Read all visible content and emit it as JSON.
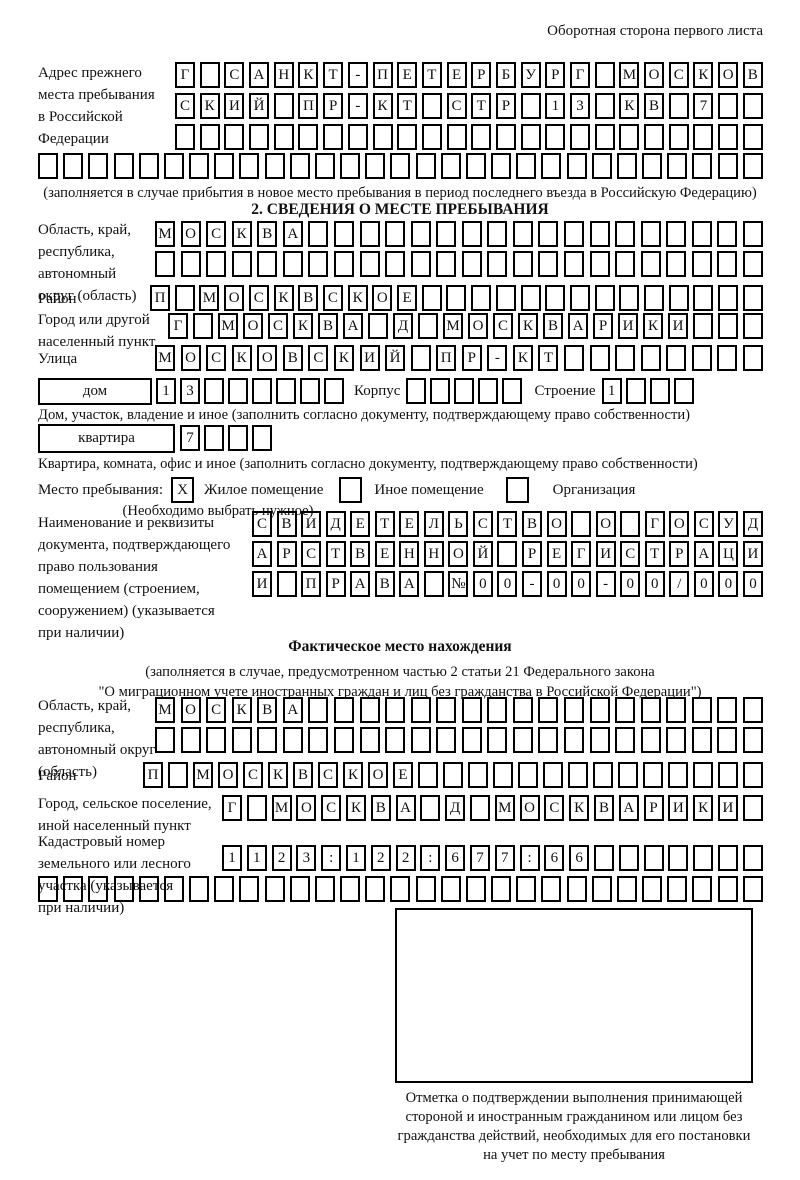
{
  "ink": "#000000",
  "page": {
    "back_note": "Оборотная сторона первого листа"
  },
  "prev": {
    "label": [
      "Адрес прежнего",
      "места пребывания",
      "в Российской",
      "Федерации"
    ],
    "row1": "Г САНКТ-ПЕТЕРБУРГ МОСКОВ",
    "row2": "СКИЙ ПР-КТ СТР 13 КВ 7",
    "row3": "",
    "row4": "",
    "caption": "(заполняется в случае прибытия в новое место пребывания в период последнего въезда в Российскую Федерацию)"
  },
  "s2": {
    "title": "2. СВЕДЕНИЯ О МЕСТЕ ПРЕБЫВАНИЯ",
    "region_label": [
      "Область, край,",
      "республика,",
      "автономный",
      "округ (область)"
    ],
    "region_row1": "МОСКВА",
    "region_row2": "",
    "district_label": "Район",
    "district_row": "П МОСКВСКОЕ",
    "city_label": [
      "Город или другой",
      "населенный пункт"
    ],
    "city_row": "Г МОСКВА Д МОСКВАРИКИ",
    "street_label": "Улица",
    "street_row": "МОСКОВСКИЙ ПР-КТ",
    "house_label": "дом",
    "house_row": "13",
    "korpus_label": "Корпус",
    "korpus_row": "",
    "stroenie_label": "Строение",
    "stroenie_row": "1",
    "house_caption": "Дом, участок, владение и иное (заполнить согласно документу, подтверждающему право собственности)",
    "apt_label": "квартира",
    "apt_row": "7",
    "apt_caption": "Квартира, комната, офис и иное (заполнить согласно документу, подтверждающему право собственности)",
    "stay_label": "Место пребывания:",
    "stay_mark": "X",
    "opt_residential": "Жилое помещение",
    "opt_other": "Иное помещение",
    "opt_org": "Организация",
    "choose_caption": "(Необходимо выбрать нужное)",
    "doc_label": [
      "Наименование и реквизиты",
      "документа, подтверждающего",
      "право пользования",
      "помещением (строением,",
      "сооружением) (указывается",
      "при наличии)"
    ],
    "doc_row1": "СВИДЕТЕЛЬСТВО О ГОСУД",
    "doc_row2": "АРСТВЕННОЙ РЕГИСТРАЦИ",
    "doc_row3": "И ПРАВА №00-00-00/000"
  },
  "s3": {
    "title": "Фактическое место нахождения",
    "caption1": "(заполняется в случае, предусмотренном частью 2 статьи 21 Федерального закона",
    "caption2": "\"О миграционном учете иностранных граждан и лиц без гражданства в Российской Федерации\")",
    "region_label": [
      "Область, край,",
      "республика,",
      "автономный округ",
      "(область)"
    ],
    "region_row1": "МОСКВА",
    "region_row2": "",
    "district_label": "Район",
    "district_row": "П МОСКВСКОЕ",
    "city_label": [
      "Город, сельское поселение,",
      "иной населенный пункт"
    ],
    "city_row": "Г МОСКВА Д МОСКВАРИКИ",
    "cadastre_label": [
      "Кадастровый номер",
      "земельного или лесного",
      "участка (указывается",
      "при наличии)"
    ],
    "cadastre_row1": "1123:122:677:66",
    "cadastre_row2": "",
    "mark_caption": [
      "Отметка о подтверждении выполнения принимающей",
      "стороной и иностранным гражданином или лицом без",
      "гражданства действий, необходимых для его постановки",
      "на учет по месту пребывания"
    ]
  }
}
